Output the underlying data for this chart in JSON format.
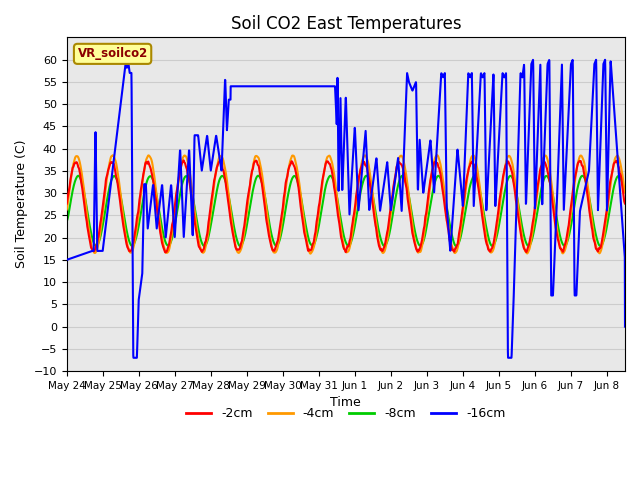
{
  "title": "Soil CO2 East Temperatures",
  "xlabel": "Time",
  "ylabel": "Soil Temperature (C)",
  "ylim": [
    -10,
    65
  ],
  "xlim_start": 0,
  "xlim_end": 15.5,
  "annotation_text": "VR_soilco2",
  "legend_labels": [
    "-2cm",
    "-4cm",
    "-8cm",
    "-16cm"
  ],
  "legend_colors": [
    "#ff0000",
    "#ff9900",
    "#00cc00",
    "#0000ff"
  ],
  "tick_labels": [
    "May 24",
    "May 25",
    "May 26",
    "May 27",
    "May 28",
    "May 29",
    "May 30",
    "May 31",
    "Jun 1",
    "Jun 2",
    "Jun 3",
    "Jun 4",
    "Jun 5",
    "Jun 6",
    "Jun 7",
    "Jun 8"
  ],
  "grid_color": "#cccccc",
  "bg_color": "#e8e8e8",
  "title_fontsize": 12,
  "linewidth_rgb": 1.5,
  "linewidth_blue": 1.5
}
